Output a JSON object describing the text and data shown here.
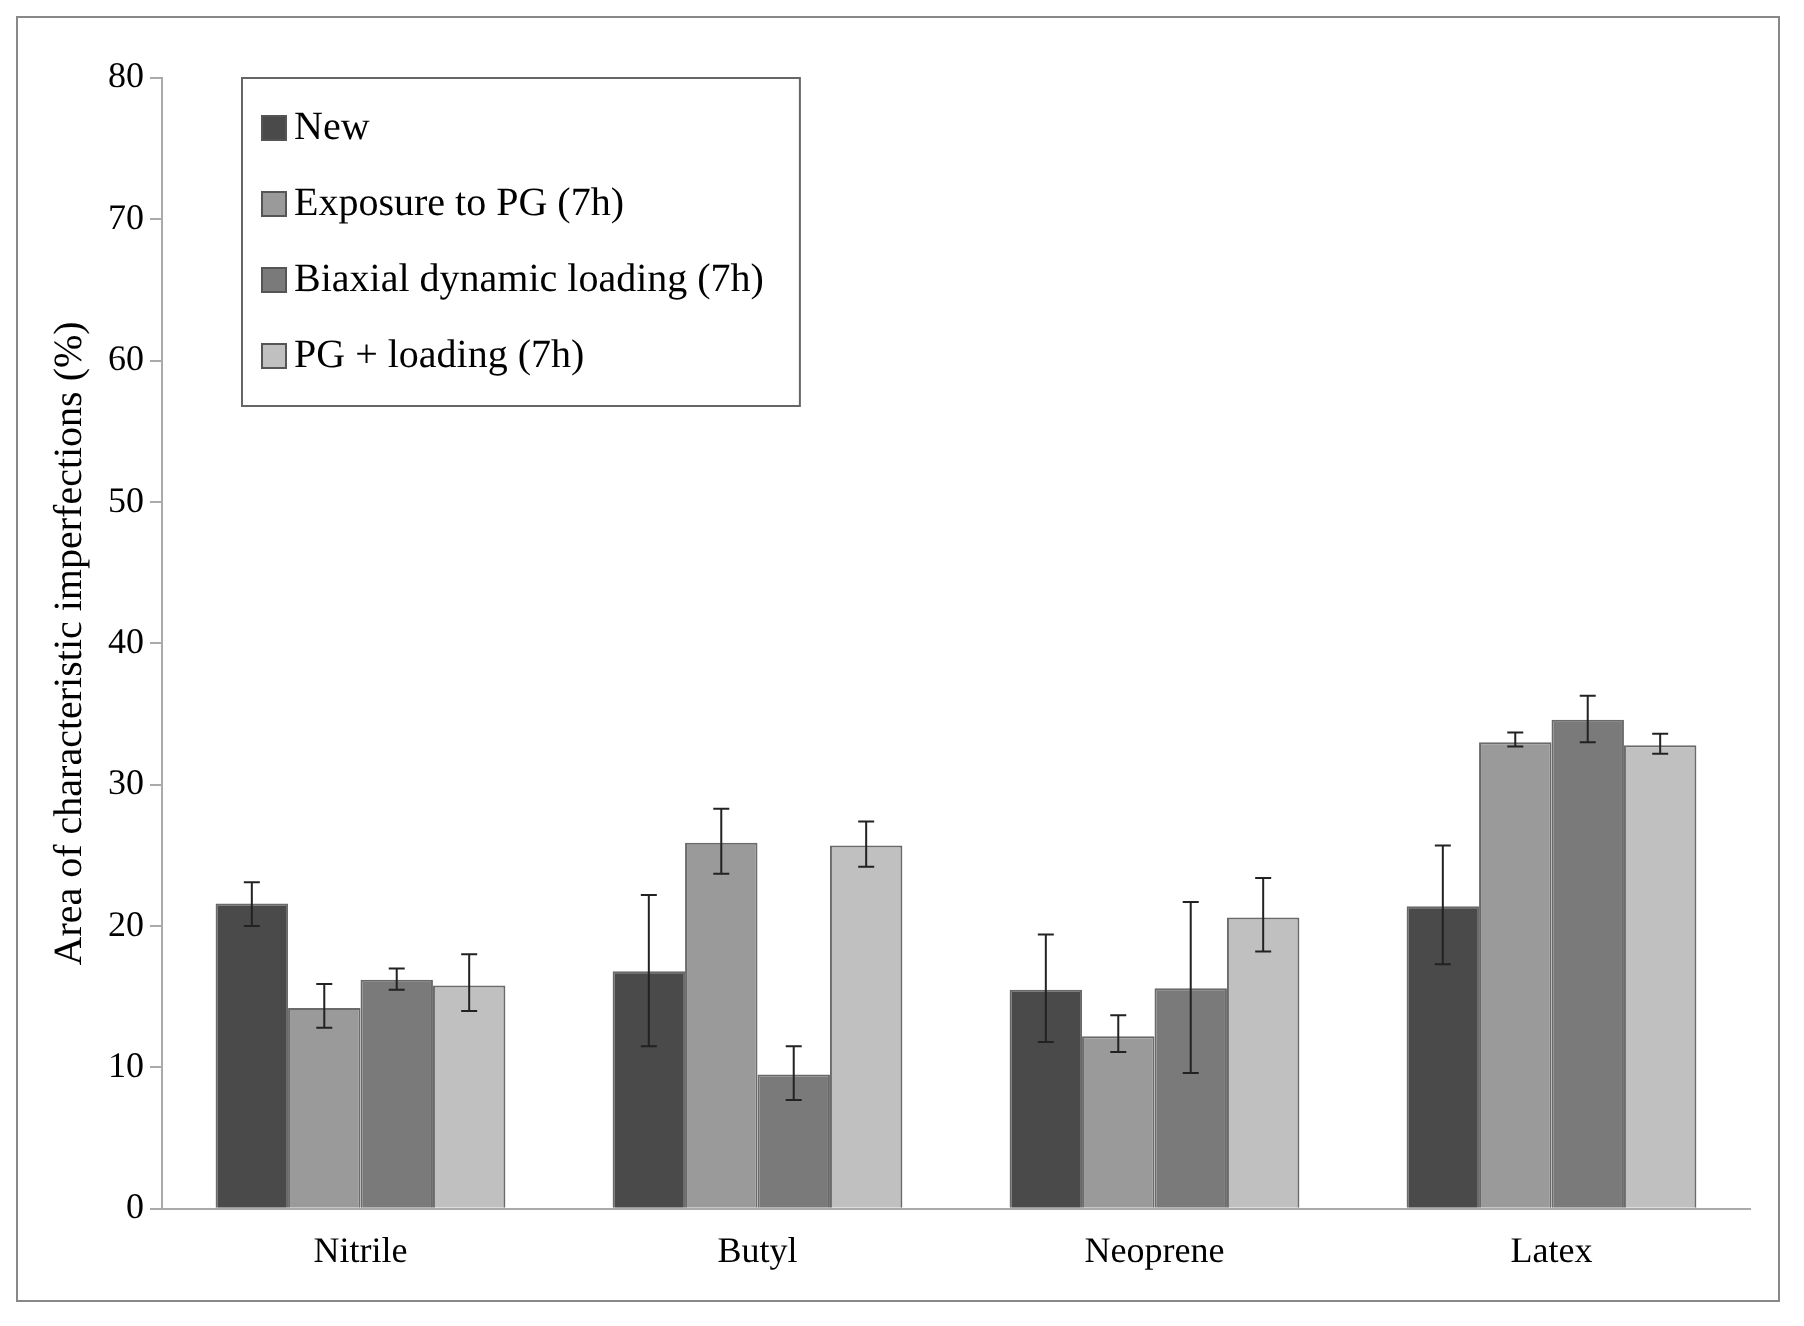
{
  "chart_data": {
    "type": "bar",
    "ylabel": "Area of characteristic imperfections (%)",
    "categories": [
      "Nitrile",
      "Butyl",
      "Neoprene",
      "Latex"
    ],
    "series": [
      {
        "name": "New",
        "color": "#4a4a4a",
        "values": [
          21.6,
          16.8,
          15.5,
          21.4
        ],
        "errors": [
          [
            20.0,
            23.1
          ],
          [
            11.5,
            22.2
          ],
          [
            11.8,
            19.4
          ],
          [
            17.3,
            25.7
          ]
        ]
      },
      {
        "name": "Exposure to PG (7h)",
        "color": "#9a9a9a",
        "values": [
          14.2,
          25.9,
          12.2,
          33.0
        ],
        "errors": [
          [
            12.8,
            15.9
          ],
          [
            23.7,
            28.3
          ],
          [
            11.1,
            13.7
          ],
          [
            32.7,
            33.7
          ]
        ]
      },
      {
        "name": "Biaxial dynamic loading (7h)",
        "color": "#7a7a7a",
        "values": [
          16.2,
          9.5,
          15.6,
          34.6
        ],
        "errors": [
          [
            15.5,
            17.0
          ],
          [
            7.7,
            11.5
          ],
          [
            9.6,
            21.7
          ],
          [
            33.0,
            36.3
          ]
        ]
      },
      {
        "name": "PG + loading (7h)",
        "color": "#c0c0c0",
        "values": [
          15.8,
          25.7,
          20.6,
          32.8
        ],
        "errors": [
          [
            14.0,
            18.0
          ],
          [
            24.2,
            27.4
          ],
          [
            18.2,
            23.4
          ],
          [
            32.2,
            33.6
          ]
        ]
      }
    ],
    "ylim": [
      0,
      80
    ],
    "yticks": [
      0,
      10,
      20,
      30,
      40,
      50,
      60,
      70,
      80
    ],
    "grid": false,
    "legend": "top left"
  }
}
